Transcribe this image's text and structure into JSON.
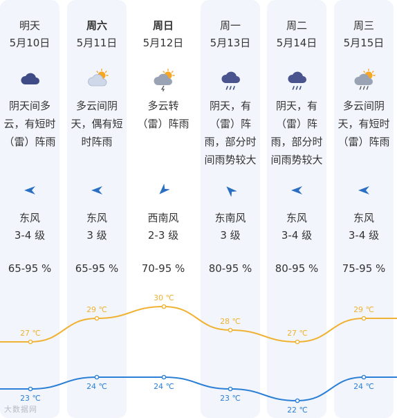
{
  "days": [
    {
      "name": "明天",
      "date": "5月10日",
      "bold": false,
      "icon": "overcast-cloud-icon",
      "desc": "阴天间多云，有短时（雷）阵雨",
      "wind_dir_icon": "wind-arrow-icon",
      "wind_dir": "东风",
      "wind_level": "3-4 级",
      "humidity": "65-95 %",
      "high": "27 ℃",
      "low": "23 ℃"
    },
    {
      "name": "周六",
      "date": "5月11日",
      "bold": true,
      "icon": "partly-cloudy-sun-icon",
      "desc": "多云间阴天，偶有短时阵雨",
      "wind_dir_icon": "wind-arrow-icon",
      "wind_dir": "东风",
      "wind_level": "3 级",
      "humidity": "65-95 %",
      "high": "29 ℃",
      "low": "24 ℃"
    },
    {
      "name": "周日",
      "date": "5月12日",
      "bold": true,
      "icon": "sun-cloud-thunder-icon",
      "desc": "多云转（雷）阵雨",
      "wind_dir_icon": "wind-arrow-icon",
      "wind_dir": "西南风",
      "wind_level": "2-3 级",
      "humidity": "70-95 %",
      "high": "30 ℃",
      "low": "24 ℃"
    },
    {
      "name": "周一",
      "date": "5月13日",
      "bold": false,
      "icon": "cloud-rain-icon",
      "desc": "阴天，有（雷）阵雨，部分时间雨势较大",
      "wind_dir_icon": "wind-arrow-icon",
      "wind_dir": "东南风",
      "wind_level": "3 级",
      "humidity": "80-95 %",
      "high": "28 ℃",
      "low": "23 ℃"
    },
    {
      "name": "周二",
      "date": "5月14日",
      "bold": false,
      "icon": "cloud-rain-icon",
      "desc": "阴天，有（雷）阵雨，部分时间雨势较大",
      "wind_dir_icon": "wind-arrow-icon",
      "wind_dir": "东风",
      "wind_level": "3-4 级",
      "humidity": "80-95 %",
      "high": "27 ℃",
      "low": "22 ℃"
    },
    {
      "name": "周三",
      "date": "5月15日",
      "bold": false,
      "icon": "sun-cloud-rain-icon",
      "desc": "多云间阴天，有短时（雷）阵雨",
      "wind_dir_icon": "wind-arrow-icon",
      "wind_dir": "东风",
      "wind_level": "3-4 级",
      "humidity": "75-95 %",
      "high": "29 ℃",
      "low": "24 ℃"
    }
  ],
  "chart_data": {
    "type": "line",
    "categories": [
      "5月10日",
      "5月11日",
      "5月12日",
      "5月13日",
      "5月14日",
      "5月15日"
    ],
    "series": [
      {
        "values": [
          27,
          29,
          30,
          28,
          27,
          29
        ],
        "color": "#f0b232"
      },
      {
        "values": [
          23,
          24,
          24,
          23,
          22,
          24
        ],
        "color": "#2b7fd6"
      }
    ]
  },
  "colors": {
    "high": "#f0b232",
    "low": "#2b7fd6",
    "column_bg": "#f2f5fb"
  },
  "wind_degrees": [
    0,
    0,
    315,
    45,
    0,
    0
  ],
  "watermark": "大数据网"
}
